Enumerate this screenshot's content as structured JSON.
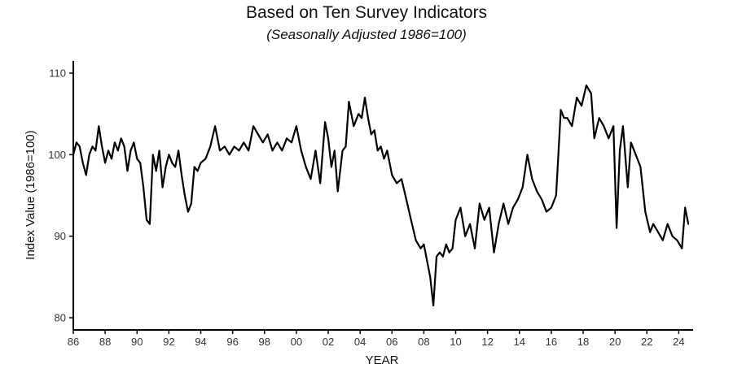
{
  "chart_data": {
    "type": "line",
    "title": "Based on Ten Survey Indicators",
    "subtitle": "(Seasonally Adjusted 1986=100)",
    "xlabel": "YEAR",
    "ylabel": "Index Value (1986=100)",
    "xlim": [
      1986,
      2024.9
    ],
    "ylim": [
      78.5,
      111.5
    ],
    "x_ticks": [
      1986,
      1988,
      1990,
      1992,
      1994,
      1996,
      1998,
      2000,
      2002,
      2004,
      2006,
      2008,
      2010,
      2012,
      2014,
      2016,
      2018,
      2020,
      2022,
      2024
    ],
    "x_tick_labels": [
      "86",
      "88",
      "90",
      "92",
      "94",
      "96",
      "98",
      "00",
      "02",
      "04",
      "06",
      "08",
      "10",
      "12",
      "14",
      "16",
      "18",
      "20",
      "22",
      "24"
    ],
    "y_ticks": [
      80,
      90,
      100,
      110
    ],
    "y_tick_labels": [
      "80",
      "90",
      "100",
      "110"
    ],
    "grid": false,
    "line_color": "#000000",
    "series": [
      {
        "x": [
          1986.0,
          1986.2,
          1986.4,
          1986.6,
          1986.8,
          1987.0,
          1987.2,
          1987.4,
          1987.6,
          1987.8,
          1988.0,
          1988.2,
          1988.4,
          1988.6,
          1988.8,
          1989.0,
          1989.2,
          1989.4,
          1989.6,
          1989.8,
          1990.0,
          1990.2,
          1990.4,
          1990.6,
          1990.8,
          1991.0,
          1991.2,
          1991.4,
          1991.6,
          1991.8,
          1992.0,
          1992.2,
          1992.4,
          1992.6,
          1992.8,
          1993.0,
          1993.2,
          1993.4,
          1993.6,
          1993.8,
          1994.0,
          1994.3,
          1994.6,
          1994.9,
          1995.2,
          1995.5,
          1995.8,
          1996.1,
          1996.4,
          1996.7,
          1997.0,
          1997.3,
          1997.6,
          1997.9,
          1998.2,
          1998.5,
          1998.8,
          1999.1,
          1999.4,
          1999.7,
          2000.0,
          2000.3,
          2000.6,
          2000.9,
          2001.2,
          2001.5,
          2001.8,
          2002.0,
          2002.2,
          2002.4,
          2002.6,
          2002.9,
          2003.1,
          2003.3,
          2003.6,
          2003.9,
          2004.1,
          2004.3,
          2004.5,
          2004.7,
          2004.9,
          2005.1,
          2005.3,
          2005.5,
          2005.7,
          2006.0,
          2006.3,
          2006.6,
          2006.9,
          2007.2,
          2007.5,
          2007.8,
          2008.0,
          2008.2,
          2008.4,
          2008.6,
          2008.8,
          2009.0,
          2009.2,
          2009.4,
          2009.6,
          2009.8,
          2010.0,
          2010.3,
          2010.6,
          2010.9,
          2011.2,
          2011.5,
          2011.8,
          2012.1,
          2012.4,
          2012.7,
          2013.0,
          2013.3,
          2013.6,
          2013.9,
          2014.2,
          2014.5,
          2014.8,
          2015.1,
          2015.4,
          2015.7,
          2016.0,
          2016.3,
          2016.6,
          2016.8,
          2017.0,
          2017.3,
          2017.6,
          2017.9,
          2018.2,
          2018.5,
          2018.7,
          2019.0,
          2019.3,
          2019.6,
          2019.9,
          2020.1,
          2020.3,
          2020.5,
          2020.8,
          2021.0,
          2021.3,
          2021.6,
          2021.9,
          2022.2,
          2022.4,
          2022.7,
          2023.0,
          2023.3,
          2023.6,
          2023.9,
          2024.2,
          2024.4,
          2024.6
        ],
        "y": [
          100,
          101.5,
          101,
          99,
          97.5,
          100,
          101,
          100.5,
          103.5,
          101,
          99,
          100.5,
          99.5,
          101.5,
          100.5,
          102,
          101,
          98,
          100.5,
          101.5,
          99.5,
          99,
          96,
          92,
          91.5,
          100,
          98,
          100.5,
          96,
          98.5,
          100,
          99,
          98.5,
          100.5,
          97.5,
          95,
          93,
          94,
          98.5,
          98,
          99,
          99.5,
          101,
          103.5,
          100.5,
          101,
          100,
          101,
          100.5,
          101.5,
          100.5,
          103.5,
          102.5,
          101.5,
          102.5,
          100.5,
          101.5,
          100.5,
          102,
          101.5,
          103.5,
          100.5,
          98.5,
          97,
          100.5,
          96.5,
          104,
          102,
          98.5,
          100.5,
          95.5,
          100.5,
          101,
          106.5,
          103.5,
          105,
          104.5,
          107,
          104.5,
          102.5,
          103,
          100.5,
          101,
          99.5,
          100.5,
          97.5,
          96.5,
          97,
          94.5,
          92,
          89.5,
          88.5,
          89,
          87,
          85,
          81.5,
          87.5,
          88,
          87.5,
          89,
          88,
          88.5,
          92,
          93.5,
          90,
          91.5,
          88.5,
          94,
          92,
          93.5,
          88,
          91.5,
          94,
          91.5,
          93.5,
          94.5,
          96,
          100,
          97,
          95.5,
          94.5,
          93,
          93.5,
          95,
          105.5,
          104.5,
          104.5,
          103.5,
          107,
          106,
          108.5,
          107.5,
          102,
          104.5,
          103.5,
          102,
          103.5,
          91,
          100.5,
          103.5,
          96,
          101.5,
          100,
          98.5,
          93,
          90.5,
          91.5,
          90.5,
          89.5,
          91.5,
          90,
          89.5,
          88.5,
          93.5,
          91.5
        ]
      }
    ]
  }
}
